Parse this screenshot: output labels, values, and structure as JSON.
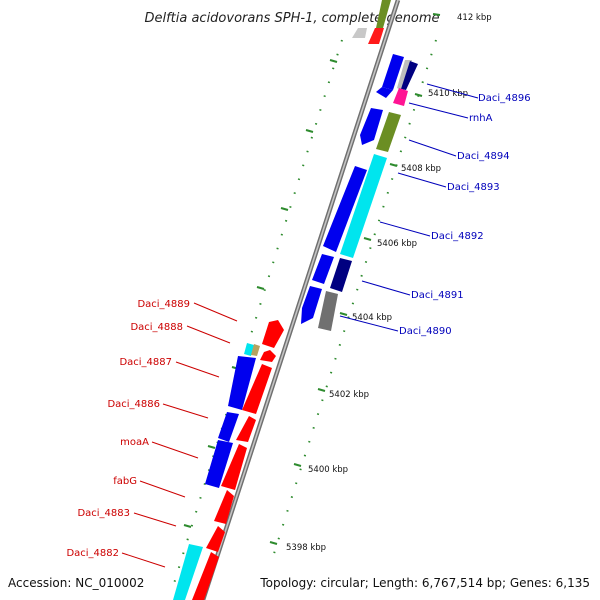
{
  "title": "Delftia acidovorans SPH-1, complete genome",
  "footer": {
    "accession": "Accession: NC_010002",
    "summary": "Topology: circular; Length: 6,767,514 bp; Genes: 6,135"
  },
  "colors": {
    "forward_label": "#cc0000",
    "reverse_label": "#0000bb",
    "tick": "#228b22",
    "backbone": "#888888"
  },
  "ticks": [
    "412 kbp",
    "5410 kbp",
    "5408 kbp",
    "5406 kbp",
    "5404 kbp",
    "5402 kbp",
    "5400 kbp",
    "5398 kbp"
  ],
  "reverse_genes": [
    "Daci_4896",
    "rnhA",
    "Daci_4894",
    "Daci_4893",
    "Daci_4892",
    "Daci_4891",
    "Daci_4890"
  ],
  "forward_genes": [
    "Daci_4889",
    "Daci_4888",
    "Daci_4887",
    "Daci_4886",
    "moaA",
    "fabG",
    "Daci_4883",
    "Daci_4882"
  ]
}
